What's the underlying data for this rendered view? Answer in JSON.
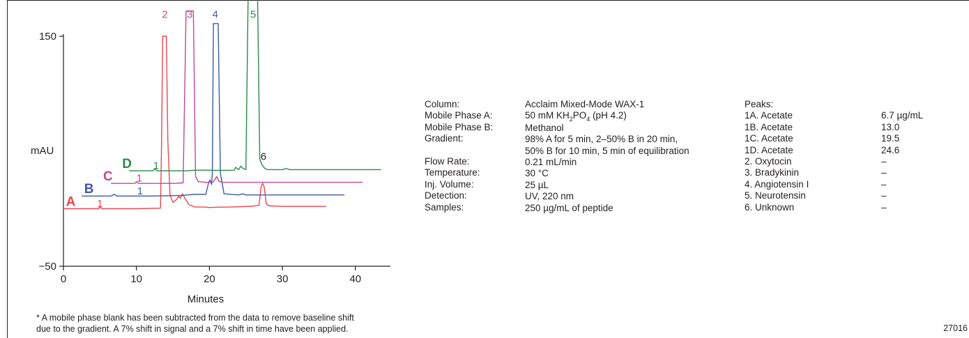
{
  "chart_data": {
    "type": "line",
    "title": "",
    "xlabel": "Minutes",
    "ylabel": "mAU",
    "xlim": [
      0,
      43
    ],
    "ylim": [
      -50,
      150
    ],
    "x_ticks": [
      0,
      10,
      20,
      30,
      40
    ],
    "y_ticks": [
      150,
      -50
    ],
    "x_tick_labels": [
      "0",
      "10",
      "20",
      "30",
      "40"
    ],
    "y_tick_labels": [
      "150",
      "−50"
    ],
    "grid": false,
    "series": [
      {
        "name": "A",
        "color": "#e8484f",
        "x": [
          0,
          4.8,
          5.0,
          5.3,
          10,
          13.3,
          13.45,
          13.6,
          13.75,
          13.9,
          14.1,
          14.3,
          14.6,
          15.0,
          15.5,
          15.8,
          16.0,
          16.3,
          16.7,
          17.2,
          18,
          19.5,
          20,
          21,
          23,
          26,
          26.8,
          27.1,
          27.3,
          27.5,
          27.8,
          28.2,
          30,
          35,
          36
        ],
        "y": [
          0,
          0,
          1.5,
          0,
          0,
          0.5,
          60,
          150,
          150,
          150,
          150,
          60,
          12,
          5.5,
          8,
          11,
          9,
          13,
          8.5,
          3.5,
          1.5,
          1.5,
          1,
          1.3,
          1.5,
          2.2,
          3,
          20,
          22,
          19,
          4,
          2.5,
          2,
          2,
          2
        ]
      },
      {
        "name": "B",
        "color": "#3d5aa6",
        "x": [
          2.5,
          6.5,
          7.0,
          7.3,
          12,
          16,
          18,
          19.5,
          19.9,
          20.1,
          20.3,
          20.4,
          20.55,
          20.7,
          20.9,
          21.2,
          21.5,
          22,
          24,
          24.6,
          25,
          30,
          35,
          38.5
        ],
        "y": [
          0,
          0,
          1.5,
          0,
          0,
          0.5,
          1.5,
          1.5,
          12,
          14,
          10,
          20,
          150,
          150,
          150,
          150,
          20,
          2,
          1,
          2,
          1,
          1,
          1,
          1
        ],
        "label_x": 8.2
      },
      {
        "name": "C",
        "color": "#c2469a",
        "x": [
          6.5,
          9.8,
          10.0,
          10.3,
          15,
          16.4,
          16.8,
          17.0,
          17.2,
          17.5,
          17.8,
          18.1,
          18.5,
          19.5,
          20.5,
          20.8,
          21.0,
          21.3,
          21.8,
          25,
          30,
          35,
          41
        ],
        "y": [
          0,
          0,
          1.5,
          0,
          0,
          0.5,
          150,
          150,
          150,
          150,
          150,
          6,
          1.5,
          1,
          1,
          4,
          6,
          2,
          1,
          1,
          1,
          1,
          1
        ]
      },
      {
        "name": "D",
        "color": "#2a8a4a",
        "x": [
          9.0,
          12.3,
          12.5,
          12.8,
          15,
          17,
          18,
          19,
          20,
          21,
          23.4,
          23.6,
          24.0,
          24.3,
          24.6,
          25.0,
          25.3,
          25.6,
          26.0,
          26.3,
          26.6,
          26.9,
          27.2,
          27.6,
          28.0,
          30,
          30.5,
          31,
          35,
          43.5
        ],
        "y": [
          0,
          0,
          2,
          0,
          0,
          0,
          0.5,
          0.5,
          0.5,
          0.3,
          0.5,
          3,
          1,
          4,
          2,
          1,
          150,
          150,
          150,
          150,
          150,
          10,
          5,
          2,
          1,
          1,
          2,
          1,
          1,
          1
        ]
      }
    ],
    "trace_offsets": {
      "A": {
        "dx": 0,
        "dy": 0
      },
      "B": {
        "dx": 3.2,
        "dy": 11
      },
      "C": {
        "dx": 6.4,
        "dy": 22
      },
      "D": {
        "dx": 9.6,
        "dy": 33
      }
    },
    "peak_labels": [
      {
        "text": "2",
        "color": "#e8484f",
        "x": 13.9,
        "y": 166
      },
      {
        "text": "3",
        "color": "#c2469a",
        "x": 17.3,
        "y": 166
      },
      {
        "text": "4",
        "color": "#3d5aa6",
        "x": 20.8,
        "y": 166
      },
      {
        "text": "5",
        "color": "#2a8a4a",
        "x": 26.0,
        "y": 166
      },
      {
        "text": "6",
        "color": "#231f20",
        "x": 27.4,
        "y": 42.5
      }
    ],
    "trace_labels": [
      {
        "letter": "A",
        "one": "1",
        "color": "#e8484f",
        "x": 1.0,
        "one_x": 5.0,
        "y": 2.5
      },
      {
        "letter": "B",
        "one": "1",
        "color": "#3d5aa6",
        "x": 3.5,
        "one_x": 10.5,
        "y": 13.5
      },
      {
        "letter": "C",
        "one": "1",
        "color": "#c2469a",
        "x": 6.1,
        "one_x": 10.4,
        "y": 24.5
      },
      {
        "letter": "D",
        "one": "1",
        "color": "#2a8a4a",
        "x": 8.7,
        "one_x": 12.7,
        "y": 35.5
      }
    ]
  },
  "conditions": {
    "labels": [
      "Column:",
      "Mobile Phase A:",
      "Mobile Phase B:",
      "Gradient:",
      "",
      "Flow Rate:",
      "Temperature:",
      "Inj. Volume:",
      "Detection:",
      "Samples:"
    ],
    "values": {
      "column": "Acclaim Mixed-Mode WAX-1",
      "mobile_a_prefix": "50 mM KH",
      "mobile_a_sub1": "2",
      "mobile_a_mid": "PO",
      "mobile_a_sub2": "4",
      "mobile_a_suffix": " (pH 4.2)",
      "mobile_b": "Methanol",
      "gradient_1": "98% A for 5 min, 2–50% B in 20 min,",
      "gradient_2": "50% B for 10 min, 5 min  of equilibration",
      "flow_rate": "0.21 mL/min",
      "temperature": "30 °C",
      "inj_volume": "25 µL",
      "detection": "UV, 220 nm",
      "samples": "250 µg/mL of peptide"
    }
  },
  "peaks": {
    "header": "Peaks:",
    "items": [
      {
        "name": "1A.  Acetate",
        "conc": "6.7 µg/mL"
      },
      {
        "name": "1B.  Acetate",
        "conc": "13.0"
      },
      {
        "name": "1C.  Acetate",
        "conc": "19.5"
      },
      {
        "name": "1D.  Acetate",
        "conc": "24.6"
      },
      {
        "name": "2.  Oxytocin",
        "conc": "–"
      },
      {
        "name": "3.  Bradykinin",
        "conc": "–"
      },
      {
        "name": "4.  Angiotensin I",
        "conc": "–"
      },
      {
        "name": "5.  Neurotensin",
        "conc": "–"
      },
      {
        "name": "6.  Unknown",
        "conc": "–"
      }
    ]
  },
  "footnote": {
    "line1": "* A mobile phase blank has been subtracted from the data to remove baseline shift",
    "line2": "due to the gradient. A 7% shift in signal and a 7% shift in time have been applied."
  },
  "figure_id": "27016"
}
